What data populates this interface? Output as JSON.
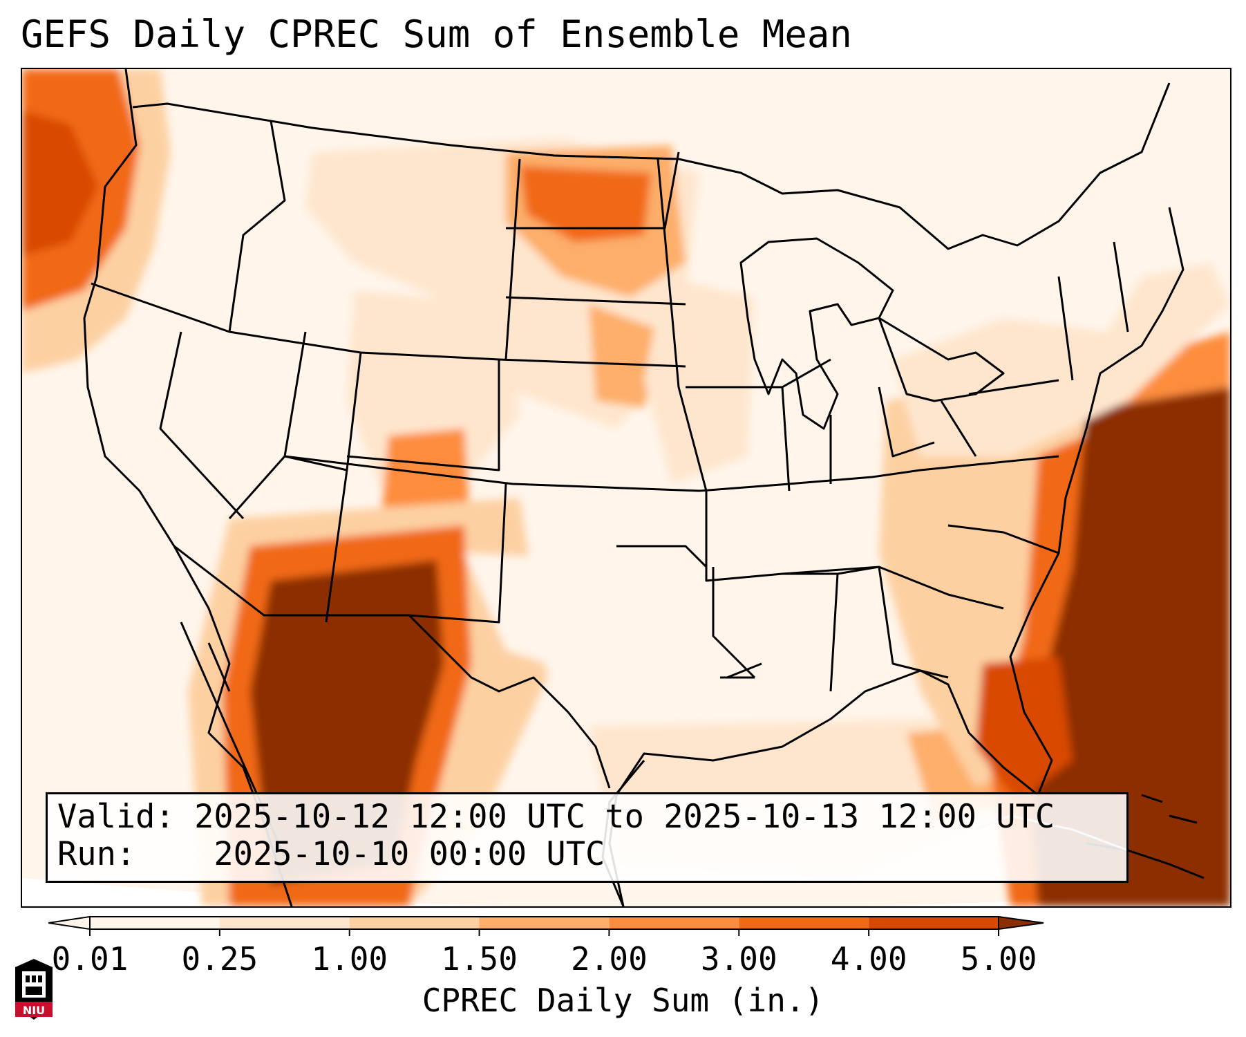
{
  "title": "GEFS Daily CPREC Sum of Ensemble Mean",
  "info": {
    "valid_label": "Valid:",
    "valid_value": "2025-10-12 12:00 UTC to 2025-10-13 12:00 UTC",
    "run_label": "Run:",
    "run_value": "2025-10-10 00:00 UTC"
  },
  "colorbar": {
    "label": "CPREC Daily Sum (in.)",
    "ticks": [
      "0.01",
      "0.25",
      "1.00",
      "1.50",
      "2.00",
      "3.00",
      "4.00",
      "5.00"
    ],
    "colors": [
      "#fff5eb",
      "#fee6ce",
      "#fdd0a2",
      "#fdae6b",
      "#fd8d3c",
      "#f16913",
      "#d94801",
      "#8c2d04"
    ],
    "extend": "both"
  },
  "map": {
    "projection": "Lambert Conformal (CONUS)",
    "field": "Convective precipitation daily sum, ensemble mean",
    "heavy_regions": [
      "Pacific Northwest offshore",
      "Northern Rockies / North Dakota",
      "Arizona and northwest Mexico",
      "Western Atlantic off the Southeast coast",
      "Eastern Gulf and Florida Straits"
    ],
    "colors": {
      "background": "#ffffff",
      "outline": "#000000"
    }
  },
  "logo": {
    "text": "NIU",
    "color": "#c8102e"
  }
}
